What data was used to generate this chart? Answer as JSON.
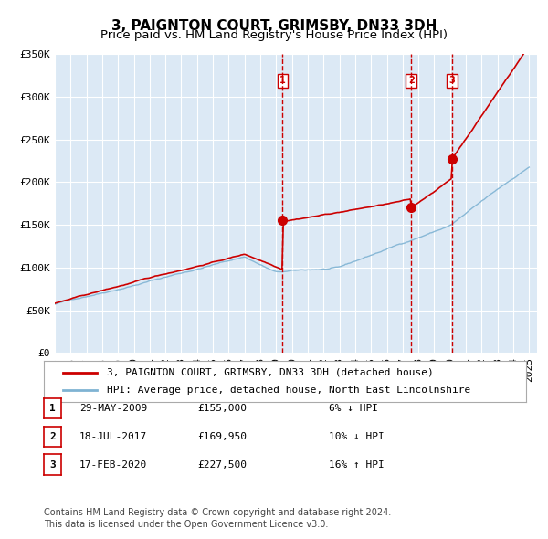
{
  "title": "3, PAIGNTON COURT, GRIMSBY, DN33 3DH",
  "subtitle": "Price paid vs. HM Land Registry's House Price Index (HPI)",
  "xlabel": "",
  "ylabel": "",
  "ylim": [
    0,
    350000
  ],
  "yticks": [
    0,
    50000,
    100000,
    150000,
    200000,
    250000,
    300000,
    350000
  ],
  "ytick_labels": [
    "£0",
    "£50K",
    "£100K",
    "£150K",
    "£200K",
    "£250K",
    "£300K",
    "£350K"
  ],
  "xlim_start": 1995.0,
  "xlim_end": 2025.5,
  "background_color": "#ffffff",
  "plot_bg_color": "#dce9f5",
  "grid_color": "#ffffff",
  "red_line_color": "#cc0000",
  "blue_line_color": "#7fb3d3",
  "transaction_marker_color": "#cc0000",
  "vline_color": "#cc0000",
  "transactions": [
    {
      "label": "1",
      "date_num": 2009.41,
      "price": 155000,
      "date_str": "29-MAY-2009",
      "price_str": "£155,000",
      "hpi_str": "6% ↓ HPI"
    },
    {
      "label": "2",
      "date_num": 2017.54,
      "price": 169950,
      "date_str": "18-JUL-2017",
      "price_str": "£169,950",
      "hpi_str": "10% ↓ HPI"
    },
    {
      "label": "3",
      "date_num": 2020.12,
      "price": 227500,
      "date_str": "17-FEB-2020",
      "price_str": "£227,500",
      "hpi_str": "16% ↑ HPI"
    }
  ],
  "legend_line1": "3, PAIGNTON COURT, GRIMSBY, DN33 3DH (detached house)",
  "legend_line2": "HPI: Average price, detached house, North East Lincolnshire",
  "footnote": "Contains HM Land Registry data © Crown copyright and database right 2024.\nThis data is licensed under the Open Government Licence v3.0.",
  "title_fontsize": 11,
  "subtitle_fontsize": 9.5,
  "tick_fontsize": 8,
  "legend_fontsize": 8,
  "footnote_fontsize": 7
}
